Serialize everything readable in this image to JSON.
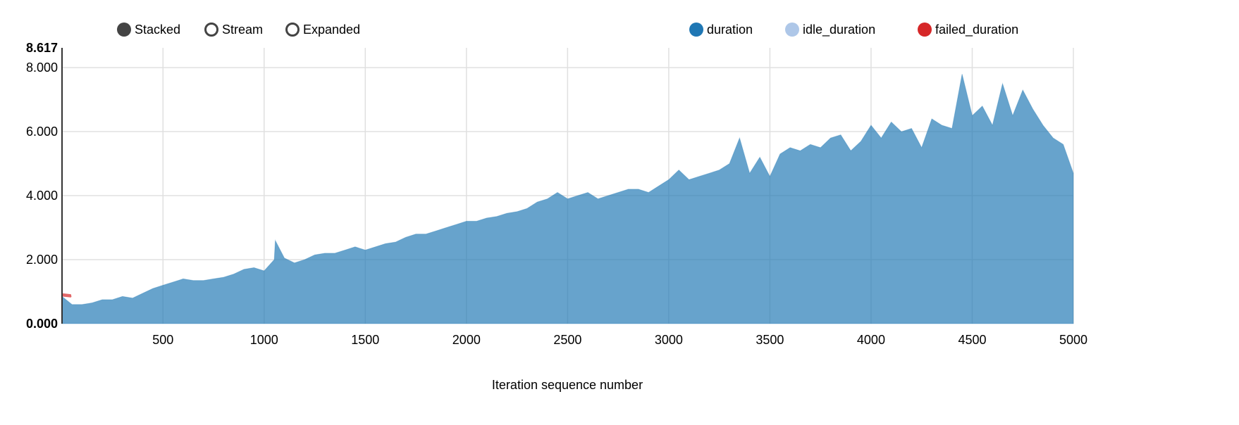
{
  "controls": {
    "options": [
      {
        "label": "Stacked",
        "selected": true
      },
      {
        "label": "Stream",
        "selected": false
      },
      {
        "label": "Expanded",
        "selected": false
      }
    ]
  },
  "chart_data": {
    "type": "area",
    "stacked": true,
    "xlabel": "Iteration sequence number",
    "ylabel": "",
    "xlim": [
      1,
      5000
    ],
    "ylim": [
      0,
      8.617
    ],
    "y_extent_labels": [
      "0.000",
      "8.617"
    ],
    "yticks": [
      "2.000",
      "4.000",
      "6.000",
      "8.000"
    ],
    "xticks": [
      "500",
      "1000",
      "1500",
      "2000",
      "2500",
      "3000",
      "3500",
      "4000",
      "4500",
      "5000"
    ],
    "grid": true,
    "legend_position": "top-right",
    "x": [
      1,
      50,
      100,
      150,
      200,
      250,
      300,
      350,
      400,
      450,
      500,
      550,
      600,
      650,
      700,
      750,
      800,
      850,
      900,
      950,
      1000,
      1050,
      1055,
      1100,
      1150,
      1200,
      1250,
      1300,
      1350,
      1400,
      1450,
      1500,
      1550,
      1600,
      1650,
      1700,
      1750,
      1800,
      1850,
      1900,
      1950,
      2000,
      2050,
      2100,
      2150,
      2200,
      2250,
      2300,
      2350,
      2400,
      2450,
      2500,
      2550,
      2600,
      2650,
      2700,
      2750,
      2800,
      2850,
      2900,
      2950,
      3000,
      3050,
      3100,
      3150,
      3200,
      3250,
      3300,
      3350,
      3400,
      3450,
      3500,
      3550,
      3600,
      3650,
      3700,
      3750,
      3800,
      3850,
      3900,
      3950,
      4000,
      4050,
      4100,
      4150,
      4200,
      4250,
      4300,
      4350,
      4400,
      4450,
      4500,
      4550,
      4600,
      4650,
      4700,
      4750,
      4800,
      4850,
      4900,
      4950,
      5000
    ],
    "series": [
      {
        "name": "duration",
        "color": "#1f77b4",
        "values": [
          0.85,
          0.6,
          0.6,
          0.65,
          0.75,
          0.75,
          0.85,
          0.8,
          0.95,
          1.1,
          1.2,
          1.3,
          1.4,
          1.35,
          1.35,
          1.4,
          1.45,
          1.55,
          1.7,
          1.75,
          1.65,
          2.0,
          2.6,
          2.05,
          1.9,
          2.0,
          2.15,
          2.2,
          2.2,
          2.3,
          2.4,
          2.3,
          2.4,
          2.5,
          2.55,
          2.7,
          2.8,
          2.8,
          2.9,
          3.0,
          3.1,
          3.2,
          3.2,
          3.3,
          3.35,
          3.45,
          3.5,
          3.6,
          3.8,
          3.9,
          4.1,
          3.9,
          4.0,
          4.1,
          3.9,
          4.0,
          4.1,
          4.2,
          4.2,
          4.1,
          4.3,
          4.5,
          4.8,
          4.5,
          4.6,
          4.7,
          4.8,
          5.0,
          5.8,
          4.7,
          5.2,
          4.6,
          5.3,
          5.5,
          5.4,
          5.6,
          5.5,
          5.8,
          5.9,
          5.4,
          5.7,
          6.2,
          5.8,
          6.3,
          6.0,
          6.1,
          5.5,
          6.4,
          6.2,
          6.1,
          7.8,
          6.5,
          6.8,
          6.2,
          7.5,
          6.5,
          7.3,
          6.7,
          6.2,
          5.8,
          5.6,
          4.7
        ]
      },
      {
        "name": "idle_duration",
        "color": "#aec7e8",
        "values": "all 0"
      },
      {
        "name": "failed_duration",
        "color": "#d62728",
        "values_first_points": [
          0.1,
          0.0
        ]
      }
    ]
  }
}
